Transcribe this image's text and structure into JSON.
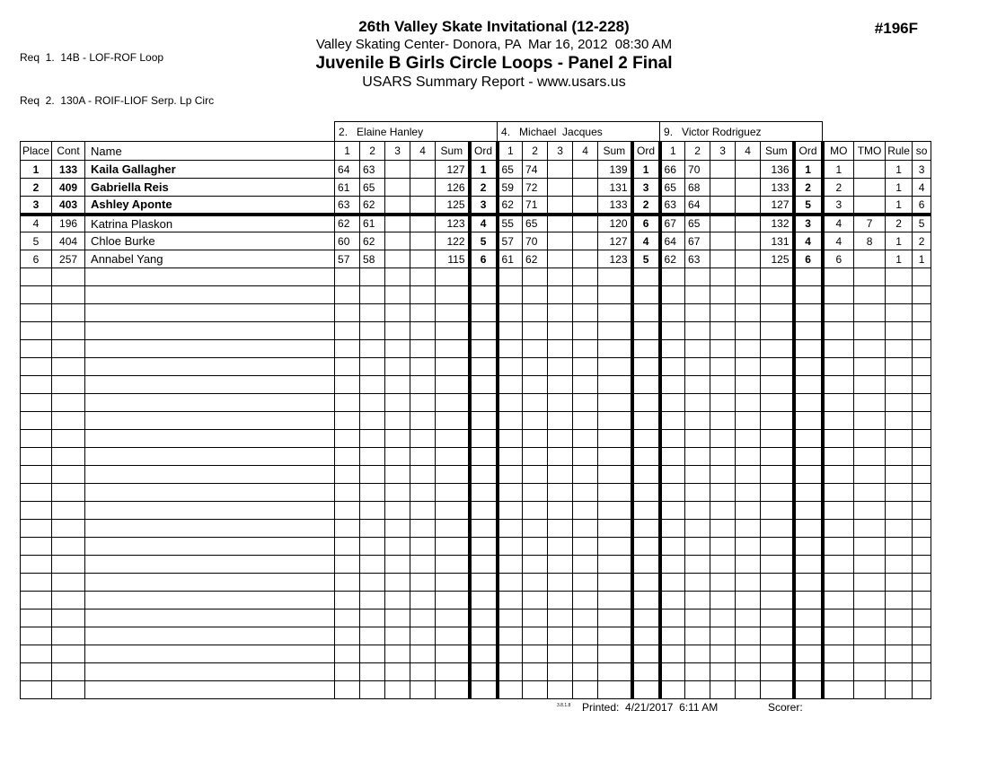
{
  "header": {
    "req_lines": [
      "Req  1.  14B - LOF-ROF Loop",
      "Req  2.  130A - ROIF-LIOF Serp. Lp Circ"
    ],
    "event_title": "26th Valley Skate Invitational (12-228)",
    "venue_line": "Valley Skating Center- Donora, PA  Mar 16, 2012  08:30 AM",
    "division_title": "Juvenile B Girls Circle Loops - Panel 2 Final",
    "report_line": "USARS Summary Report - www.usars.us",
    "event_number": "#196F"
  },
  "table": {
    "left_headers": [
      "Place",
      "Cont",
      "Name"
    ],
    "judges": [
      {
        "label": "2.   Elaine Hanley"
      },
      {
        "label": "4.   Michael  Jacques"
      },
      {
        "label": "9.   Victor Rodriguez"
      }
    ],
    "judge_subheaders": [
      "1",
      "2",
      "3",
      "4",
      "Sum",
      "Ord"
    ],
    "right_headers": [
      "MO",
      "TMO",
      "Rule",
      "so"
    ],
    "cut_after_row": 3,
    "empty_row_count": 24,
    "rows": [
      {
        "place": "1",
        "cont": "133",
        "name": "Kaila Gallagher",
        "bold": true,
        "judges": [
          {
            "scores": [
              "64",
              "63",
              "",
              ""
            ],
            "sum": "127",
            "ord": "1"
          },
          {
            "scores": [
              "65",
              "74",
              "",
              ""
            ],
            "sum": "139",
            "ord": "1"
          },
          {
            "scores": [
              "66",
              "70",
              "",
              ""
            ],
            "sum": "136",
            "ord": "1"
          }
        ],
        "mo": "1",
        "tmo": "",
        "rule": "1",
        "so": "3"
      },
      {
        "place": "2",
        "cont": "409",
        "name": "Gabriella Reis",
        "bold": true,
        "judges": [
          {
            "scores": [
              "61",
              "65",
              "",
              ""
            ],
            "sum": "126",
            "ord": "2"
          },
          {
            "scores": [
              "59",
              "72",
              "",
              ""
            ],
            "sum": "131",
            "ord": "3"
          },
          {
            "scores": [
              "65",
              "68",
              "",
              ""
            ],
            "sum": "133",
            "ord": "2"
          }
        ],
        "mo": "2",
        "tmo": "",
        "rule": "1",
        "so": "4"
      },
      {
        "place": "3",
        "cont": "403",
        "name": "Ashley Aponte",
        "bold": true,
        "judges": [
          {
            "scores": [
              "63",
              "62",
              "",
              ""
            ],
            "sum": "125",
            "ord": "3"
          },
          {
            "scores": [
              "62",
              "71",
              "",
              ""
            ],
            "sum": "133",
            "ord": "2"
          },
          {
            "scores": [
              "63",
              "64",
              "",
              ""
            ],
            "sum": "127",
            "ord": "5"
          }
        ],
        "mo": "3",
        "tmo": "",
        "rule": "1",
        "so": "6"
      },
      {
        "place": "4",
        "cont": "196",
        "name": "Katrina Plaskon",
        "bold": false,
        "judges": [
          {
            "scores": [
              "62",
              "61",
              "",
              ""
            ],
            "sum": "123",
            "ord": "4"
          },
          {
            "scores": [
              "55",
              "65",
              "",
              ""
            ],
            "sum": "120",
            "ord": "6"
          },
          {
            "scores": [
              "67",
              "65",
              "",
              ""
            ],
            "sum": "132",
            "ord": "3"
          }
        ],
        "mo": "4",
        "tmo": "7",
        "rule": "2",
        "so": "5"
      },
      {
        "place": "5",
        "cont": "404",
        "name": "Chloe Burke",
        "bold": false,
        "judges": [
          {
            "scores": [
              "60",
              "62",
              "",
              ""
            ],
            "sum": "122",
            "ord": "5"
          },
          {
            "scores": [
              "57",
              "70",
              "",
              ""
            ],
            "sum": "127",
            "ord": "4"
          },
          {
            "scores": [
              "64",
              "67",
              "",
              ""
            ],
            "sum": "131",
            "ord": "4"
          }
        ],
        "mo": "4",
        "tmo": "8",
        "rule": "1",
        "so": "2"
      },
      {
        "place": "6",
        "cont": "257",
        "name": "Annabel Yang",
        "bold": false,
        "judges": [
          {
            "scores": [
              "57",
              "58",
              "",
              ""
            ],
            "sum": "115",
            "ord": "6"
          },
          {
            "scores": [
              "61",
              "62",
              "",
              ""
            ],
            "sum": "123",
            "ord": "5"
          },
          {
            "scores": [
              "62",
              "63",
              "",
              ""
            ],
            "sum": "125",
            "ord": "6"
          }
        ],
        "mo": "6",
        "tmo": "",
        "rule": "1",
        "so": "1"
      }
    ]
  },
  "footer": {
    "version": "3.8.1.8",
    "printed": "Printed:  4/21/2017  6:11 AM",
    "scorer": "Scorer:"
  }
}
